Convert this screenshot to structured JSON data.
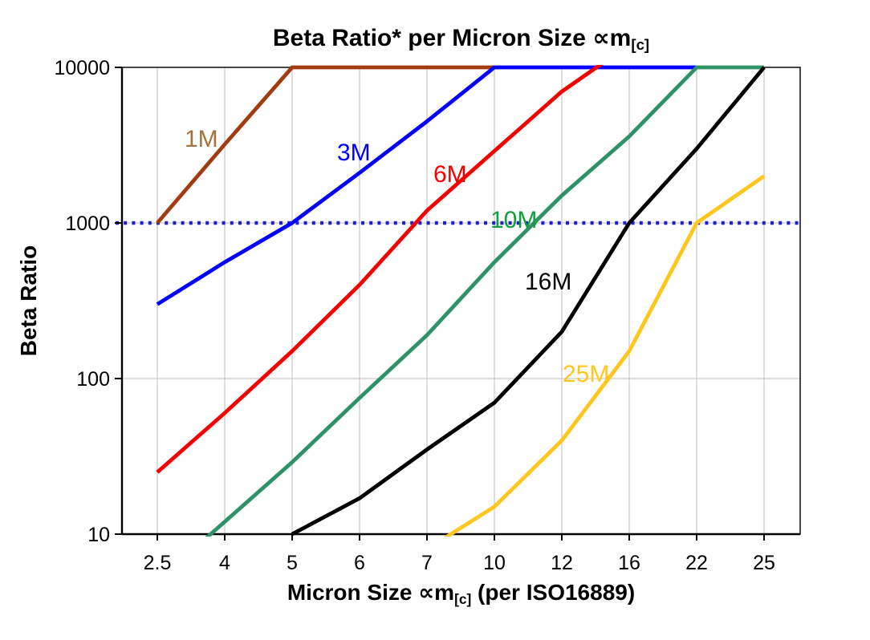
{
  "page": {
    "background": "#FFFFFF"
  },
  "chart_data": {
    "type": "line",
    "title": "Beta Ratio* per Micron Size ∝m[c]",
    "title_parts": {
      "prefix": "Beta Ratio* per Micron Size ",
      "symbol": "∝m",
      "subscript": "[c]"
    },
    "xlabel": "Micron Size ∝m[c] (per ISO16889)",
    "xlabel_parts": {
      "prefix": "Micron Size ",
      "symbol": "∝m",
      "subscript": "[c]",
      "suffix": " (per ISO16889)"
    },
    "ylabel": "Beta Ratio",
    "x_categories": [
      2.5,
      4,
      5,
      6,
      7,
      10,
      12,
      16,
      22,
      25
    ],
    "y_scale": "log",
    "ylim": [
      10,
      10000
    ],
    "y_ticks": [
      10,
      100,
      1000,
      10000
    ],
    "grid": {
      "vertical": true,
      "horizontal": true,
      "color": "#C9C9C9"
    },
    "reference_line": {
      "value": 1000,
      "style": "dotted",
      "color": "#2222CC"
    },
    "series": [
      {
        "name": "1M",
        "color": "#A03C10",
        "label_color": "#A5713D",
        "points": [
          [
            2.5,
            1000
          ],
          [
            4,
            3200
          ],
          [
            5,
            10000
          ],
          [
            7,
            10000
          ],
          [
            10,
            10000
          ]
        ]
      },
      {
        "name": "3M",
        "color": "#0000FF",
        "label_color": "#0000FF",
        "points": [
          [
            2.5,
            300
          ],
          [
            4,
            560
          ],
          [
            5,
            1000
          ],
          [
            6,
            2100
          ],
          [
            7,
            4500
          ],
          [
            10,
            10000
          ],
          [
            12,
            10000
          ],
          [
            16,
            10000
          ],
          [
            22,
            10000
          ]
        ]
      },
      {
        "name": "6M",
        "color": "#F50000",
        "label_color": "#F50000",
        "points": [
          [
            2.5,
            25
          ],
          [
            4,
            60
          ],
          [
            5,
            150
          ],
          [
            6,
            400
          ],
          [
            7,
            1200
          ],
          [
            10,
            2900
          ],
          [
            12,
            7000
          ],
          [
            16,
            14000
          ]
        ]
      },
      {
        "name": "10M",
        "color": "#2E9168",
        "label_color": "#0FA03C",
        "points": [
          [
            2.5,
            5
          ],
          [
            4,
            12
          ],
          [
            5,
            29
          ],
          [
            6,
            75
          ],
          [
            7,
            190
          ],
          [
            10,
            560
          ],
          [
            12,
            1500
          ],
          [
            16,
            3600
          ],
          [
            22,
            10000
          ],
          [
            25,
            10000
          ]
        ]
      },
      {
        "name": "16M",
        "color": "#000000",
        "label_color": "#000000",
        "points": [
          [
            5,
            10
          ],
          [
            6,
            17
          ],
          [
            7,
            35
          ],
          [
            10,
            70
          ],
          [
            12,
            200
          ],
          [
            16,
            1000
          ],
          [
            22,
            3000
          ],
          [
            25,
            10000
          ]
        ]
      },
      {
        "name": "25M",
        "color": "#FFC71E",
        "label_color": "#FFC71E",
        "points": [
          [
            7,
            8
          ],
          [
            10,
            15
          ],
          [
            12,
            40
          ],
          [
            16,
            150
          ],
          [
            22,
            1000
          ],
          [
            25,
            2000
          ]
        ]
      }
    ]
  }
}
